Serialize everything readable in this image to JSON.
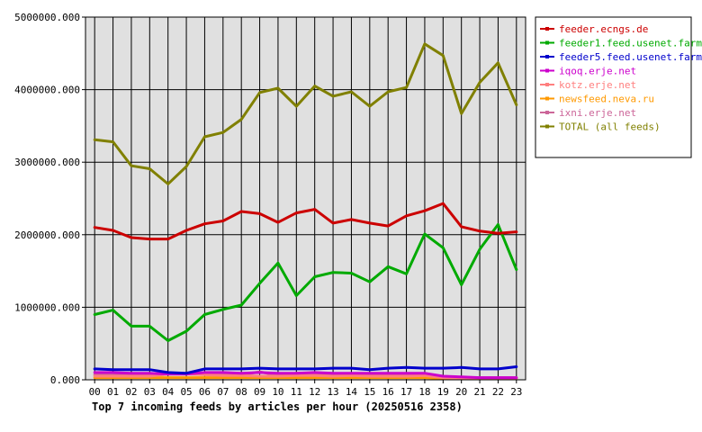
{
  "chart_data": {
    "type": "line",
    "title": "Top 7 incoming feeds by articles per hour (20250516 2358)",
    "x": [
      "00",
      "01",
      "02",
      "03",
      "04",
      "05",
      "06",
      "07",
      "08",
      "09",
      "10",
      "11",
      "12",
      "13",
      "14",
      "15",
      "16",
      "17",
      "18",
      "19",
      "20",
      "21",
      "22",
      "23"
    ],
    "ylim": [
      0,
      5000000
    ],
    "yticks": [
      "0.000",
      "1000000.000",
      "2000000.000",
      "3000000.000",
      "4000000.000",
      "5000000.000"
    ],
    "grid": true,
    "legend_position": "right",
    "series": [
      {
        "name": "feeder.ecngs.de",
        "color": "#cc0000",
        "values": [
          2100000,
          2060000,
          1960000,
          1940000,
          1940000,
          2060000,
          2150000,
          2190000,
          2320000,
          2290000,
          2170000,
          2300000,
          2350000,
          2160000,
          2210000,
          2160000,
          2120000,
          2260000,
          2330000,
          2430000,
          2110000,
          2050000,
          2020000,
          2040000
        ]
      },
      {
        "name": "feeder1.feed.usenet.farm",
        "color": "#00aa00",
        "values": [
          900000,
          960000,
          740000,
          740000,
          540000,
          670000,
          900000,
          970000,
          1030000,
          1330000,
          1610000,
          1160000,
          1420000,
          1480000,
          1470000,
          1350000,
          1560000,
          1460000,
          2010000,
          1820000,
          1310000,
          1800000,
          2140000,
          1520000
        ]
      },
      {
        "name": "feeder5.feed.usenet.farm",
        "color": "#0000cc",
        "values": [
          150000,
          140000,
          140000,
          140000,
          100000,
          90000,
          150000,
          150000,
          150000,
          160000,
          150000,
          150000,
          150000,
          160000,
          160000,
          140000,
          160000,
          170000,
          160000,
          160000,
          170000,
          150000,
          150000,
          180000
        ]
      },
      {
        "name": "iqoq.erje.net",
        "color": "#cc00cc",
        "values": [
          100000,
          100000,
          90000,
          90000,
          80000,
          80000,
          100000,
          100000,
          90000,
          100000,
          90000,
          90000,
          100000,
          90000,
          90000,
          90000,
          90000,
          90000,
          90000,
          50000,
          40000,
          30000,
          30000,
          30000
        ]
      },
      {
        "name": "kotz.erje.net",
        "color": "#ff7f7f",
        "values": [
          50000,
          50000,
          50000,
          50000,
          80000,
          80000,
          70000,
          60000,
          60000,
          50000,
          50000,
          60000,
          60000,
          50000,
          60000,
          50000,
          50000,
          50000,
          60000,
          30000,
          20000,
          20000,
          20000,
          20000
        ]
      },
      {
        "name": "newsfeed.neva.ru",
        "color": "#ff9900",
        "values": [
          30000,
          30000,
          30000,
          30000,
          30000,
          30000,
          30000,
          30000,
          30000,
          30000,
          30000,
          30000,
          30000,
          30000,
          30000,
          30000,
          30000,
          30000,
          30000,
          20000,
          20000,
          20000,
          20000,
          20000
        ]
      },
      {
        "name": "ixni.erje.net",
        "color": "#cc6699",
        "values": [
          70000,
          70000,
          60000,
          60000,
          80000,
          80000,
          90000,
          70000,
          70000,
          110000,
          60000,
          90000,
          80000,
          70000,
          70000,
          70000,
          60000,
          60000,
          80000,
          40000,
          30000,
          30000,
          30000,
          30000
        ]
      },
      {
        "name": "TOTAL (all feeds)",
        "color": "#808000",
        "values": [
          3310000,
          3280000,
          2950000,
          2910000,
          2700000,
          2940000,
          3350000,
          3410000,
          3590000,
          3960000,
          4020000,
          3770000,
          4050000,
          3910000,
          3970000,
          3770000,
          3970000,
          4030000,
          4630000,
          4470000,
          3670000,
          4100000,
          4370000,
          3790000
        ]
      }
    ]
  }
}
